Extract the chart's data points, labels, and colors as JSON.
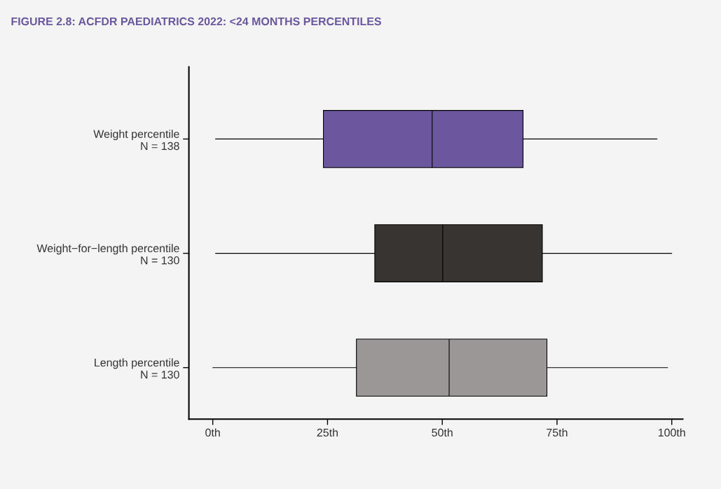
{
  "chart_data": {
    "type": "box",
    "title": "FIGURE 2.8: ACFDR PAEDIATRICS 2022: <24 MONTHS PERCENTILES",
    "orientation": "horizontal",
    "categories": [
      "Weight percentile\nN = 138",
      "Weight−for−length percentile\nN = 130",
      "Length percentile\nN = 130"
    ],
    "boxes": [
      {
        "low": 0.6,
        "q1": 24.1,
        "median": 47.8,
        "q3": 67.6,
        "high": 96.8
      },
      {
        "low": 0.6,
        "q1": 35.3,
        "median": 50.1,
        "q3": 71.8,
        "high": 100
      },
      {
        "low": 0,
        "q1": 31.3,
        "median": 51.5,
        "q3": 72.8,
        "high": 99.1
      }
    ],
    "colors": [
      "#6a579e",
      "#383431",
      "#9b9796"
    ],
    "xlim": [
      -5.2,
      102.4
    ],
    "xticks": [
      {
        "value": 0,
        "label": "0th"
      },
      {
        "value": 25,
        "label": "25th"
      },
      {
        "value": 50,
        "label": "50th"
      },
      {
        "value": 75,
        "label": "75th"
      },
      {
        "value": 100,
        "label": "100th"
      }
    ],
    "grid": false,
    "legend": false
  }
}
